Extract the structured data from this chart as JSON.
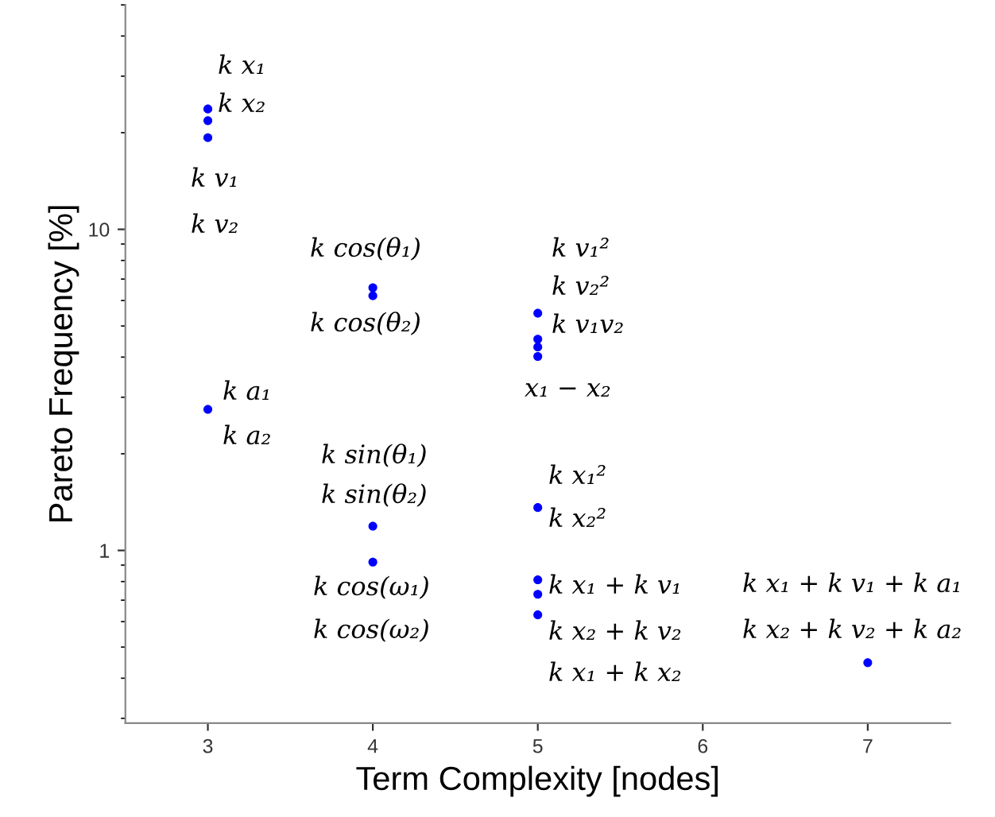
{
  "chart_data": {
    "type": "scatter",
    "xlabel": "Term Complexity [nodes]",
    "ylabel": "Pareto Frequency [%]",
    "x": [
      3,
      3,
      3,
      3,
      4,
      4,
      4,
      4,
      5,
      5,
      5,
      5,
      5,
      5,
      5,
      5,
      7
    ],
    "values": [
      23.7,
      21.8,
      19.3,
      2.75,
      6.58,
      6.21,
      1.19,
      0.92,
      5.48,
      4.55,
      4.3,
      4.02,
      1.36,
      0.81,
      0.73,
      0.63,
      0.447
    ],
    "color": "#0000ff",
    "marker": "circle",
    "log": "y",
    "grid": false,
    "xlim": [
      2.5,
      7.5
    ],
    "xticks": [
      3,
      4,
      5,
      6,
      7
    ],
    "ylim": [
      0.29,
      50
    ],
    "yticks": [
      1,
      10
    ],
    "annotations": [
      "k x₁",
      "k x₂",
      "k v₁",
      "k v₂",
      "k cos(θ₁)",
      "k cos(θ₂)",
      "k a₁",
      "k a₂",
      "k v₁²",
      "k v₂²",
      "k v₁v₂",
      "x₁ − x₂",
      "k sin(θ₁)",
      "k sin(θ₂)",
      "k x₁²",
      "k x₂²",
      "k cos(ω₁)",
      "k cos(ω₂)",
      "k x₁ + k v₁",
      "k x₂ + k v₂",
      "k x₁ + k x₂",
      "k x₁ + k v₁ + k a₁",
      "k x₂ + k v₂ + k a₂"
    ]
  }
}
